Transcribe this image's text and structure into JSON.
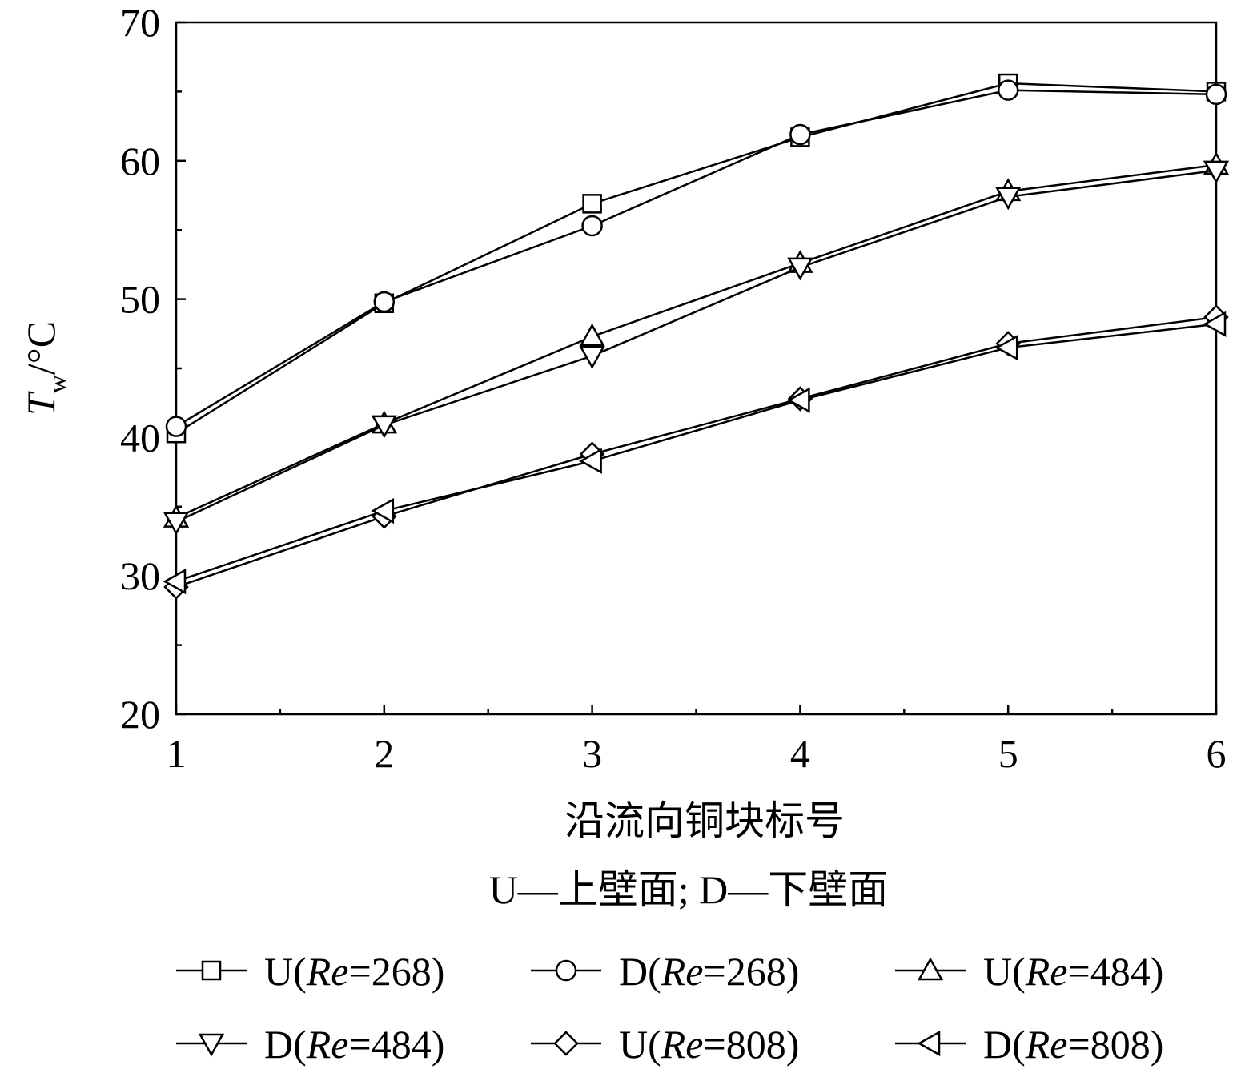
{
  "chart_data": {
    "type": "line",
    "x_label": "沿流向铜块标号",
    "y_label_symbol": "T",
    "y_label_subscript": "w",
    "y_label_unit": "/°C",
    "note": "U—上壁面; D—下壁面",
    "x": [
      1,
      2,
      3,
      4,
      5,
      6
    ],
    "x_ticks": [
      "1",
      "2",
      "3",
      "4",
      "5",
      "6"
    ],
    "xlim": [
      1,
      6
    ],
    "ylim": [
      20,
      70
    ],
    "y_ticks": [
      "20",
      "30",
      "40",
      "50",
      "60",
      "70"
    ],
    "grid": false,
    "legend_position": "bottom",
    "series": [
      {
        "name": "U(Re=268)",
        "prefix": "U(",
        "re": "Re",
        "suffix": "=268)",
        "marker": "square",
        "values": [
          40.3,
          49.7,
          56.9,
          61.7,
          65.6,
          65.0
        ]
      },
      {
        "name": "D(Re=268)",
        "prefix": "D(",
        "re": "Re",
        "suffix": "=268)",
        "marker": "circle",
        "values": [
          40.8,
          49.8,
          55.3,
          61.9,
          65.1,
          64.8
        ]
      },
      {
        "name": "U(Re=484)",
        "prefix": "U(",
        "re": "Re",
        "suffix": "=484)",
        "marker": "triangle-up",
        "values": [
          34.2,
          41.0,
          47.3,
          52.6,
          57.8,
          59.7
        ]
      },
      {
        "name": "D(Re=484)",
        "prefix": "D(",
        "re": "Re",
        "suffix": "=484)",
        "marker": "triangle-down",
        "values": [
          33.9,
          40.9,
          45.9,
          52.3,
          57.4,
          59.3
        ]
      },
      {
        "name": "U(Re=808)",
        "prefix": "U(",
        "re": "Re",
        "suffix": "=808)",
        "marker": "diamond",
        "values": [
          29.2,
          34.3,
          38.8,
          42.8,
          46.8,
          48.7
        ]
      },
      {
        "name": "D(Re=808)",
        "prefix": "D(",
        "re": "Re",
        "suffix": "=808)",
        "marker": "triangle-left",
        "values": [
          29.6,
          34.7,
          38.3,
          42.7,
          46.5,
          48.2
        ]
      }
    ]
  }
}
